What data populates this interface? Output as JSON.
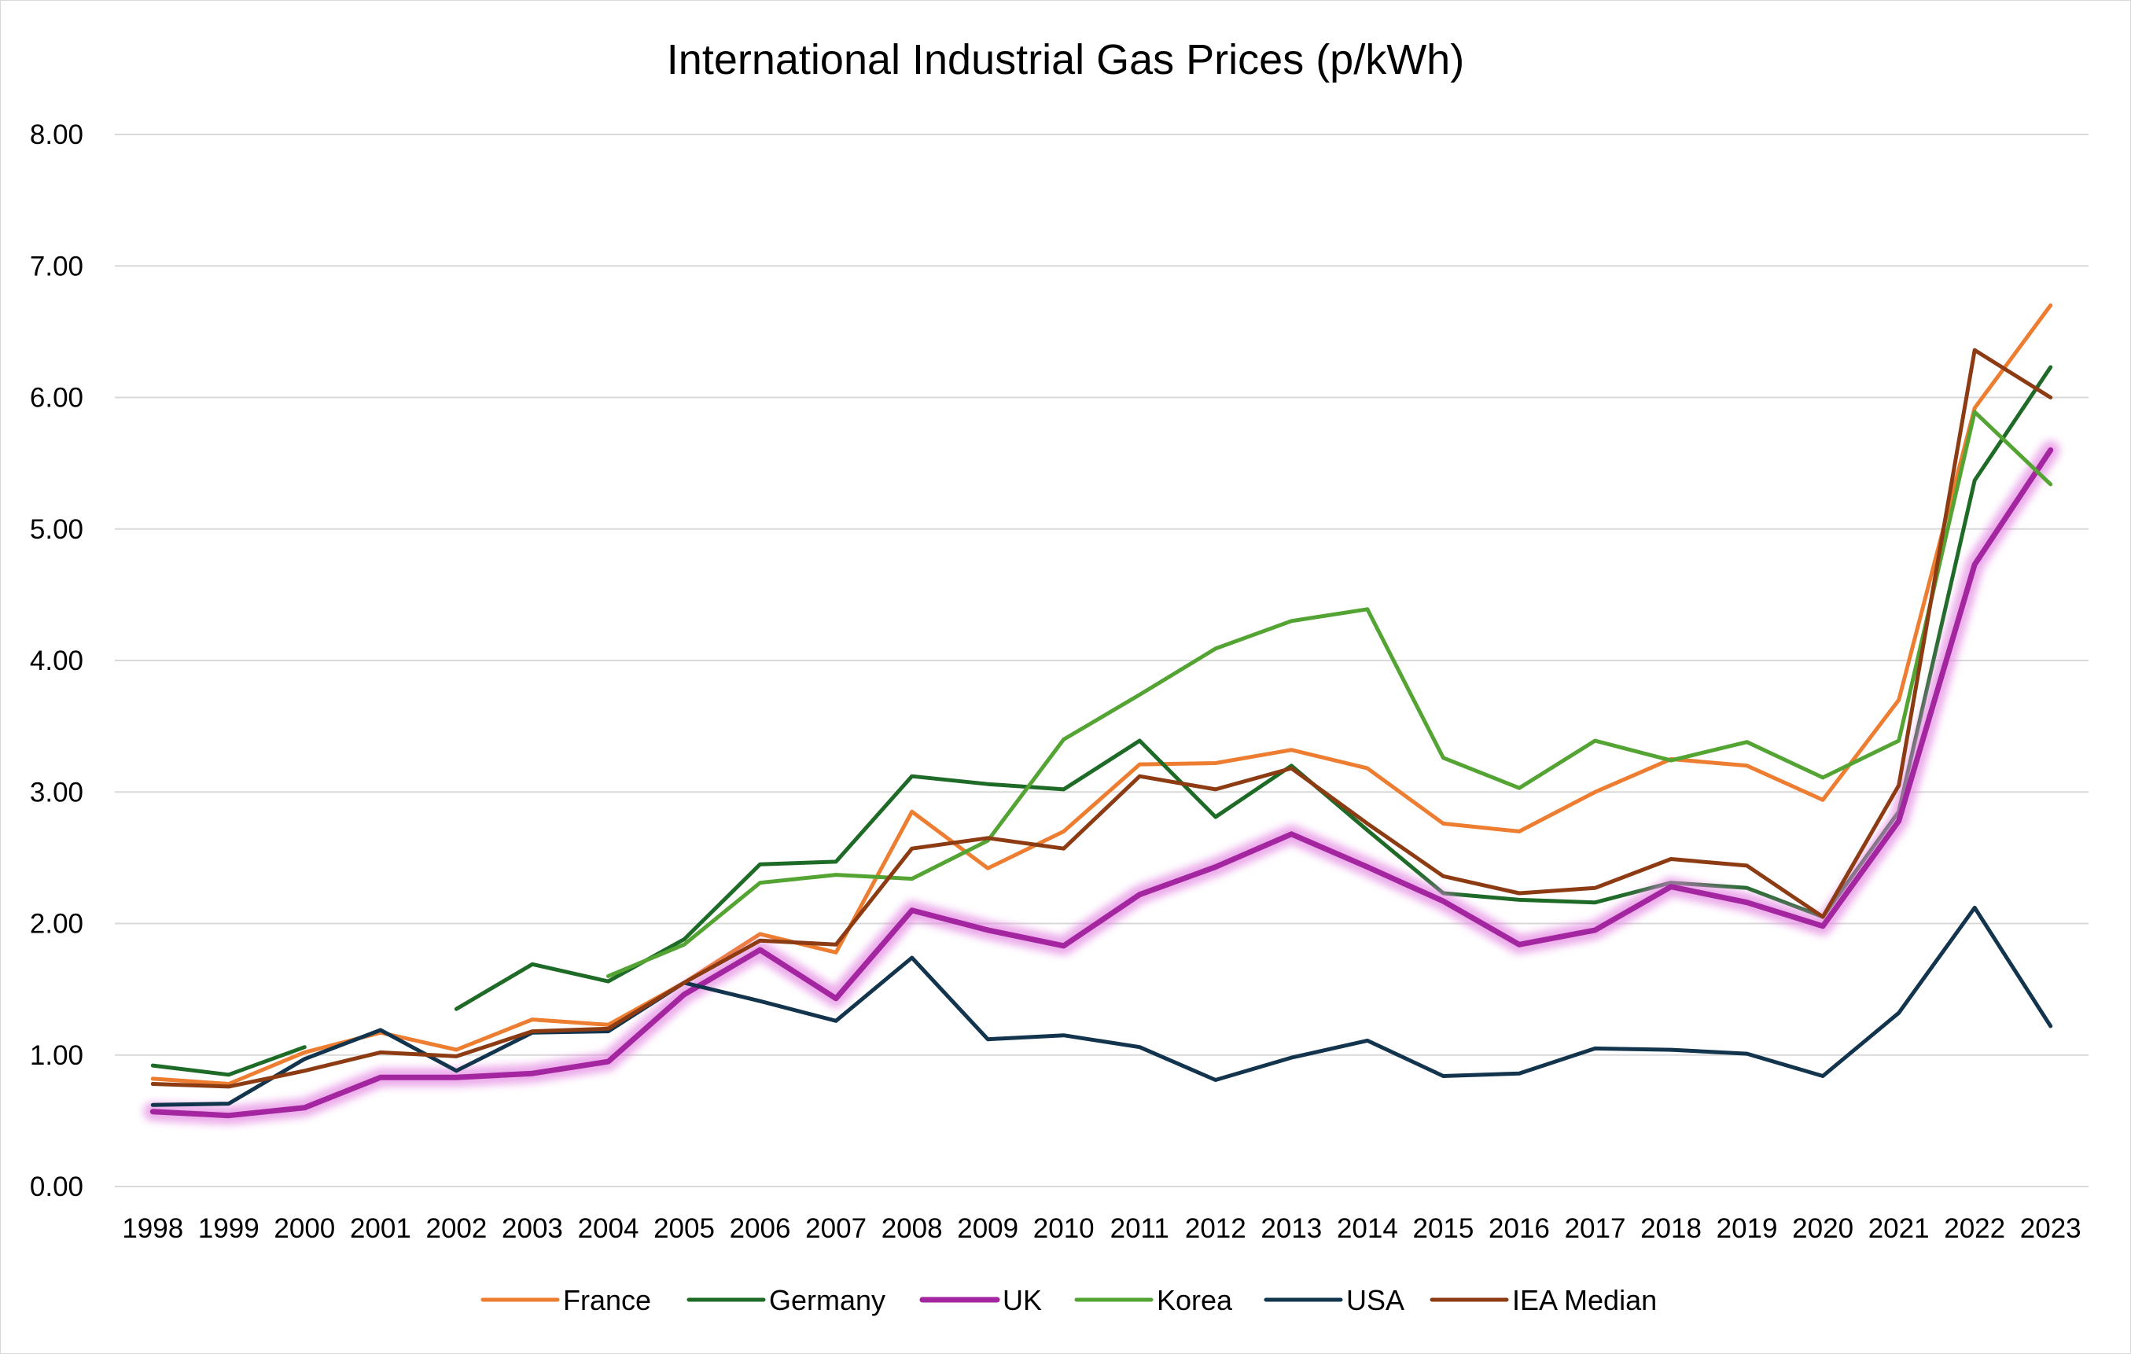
{
  "chart_data": {
    "type": "line",
    "title": "International Industrial Gas Prices (p/kWh)",
    "xlabel": "",
    "ylabel": "",
    "ylim": [
      0,
      8
    ],
    "ytick_labels": [
      "0.00",
      "1.00",
      "2.00",
      "3.00",
      "4.00",
      "5.00",
      "6.00",
      "7.00",
      "8.00"
    ],
    "grid": true,
    "legend_position": "bottom",
    "categories": [
      "1998",
      "1999",
      "2000",
      "2001",
      "2002",
      "2003",
      "2004",
      "2005",
      "2006",
      "2007",
      "2008",
      "2009",
      "2010",
      "2011",
      "2012",
      "2013",
      "2014",
      "2015",
      "2016",
      "2017",
      "2018",
      "2019",
      "2020",
      "2021",
      "2022",
      "2023"
    ],
    "series": [
      {
        "name": "France",
        "color": "#ED7D31",
        "values": [
          0.82,
          0.78,
          1.02,
          1.17,
          1.04,
          1.27,
          1.23,
          1.55,
          1.92,
          1.78,
          2.85,
          2.42,
          2.7,
          3.21,
          3.22,
          3.32,
          3.18,
          2.76,
          2.7,
          3.0,
          3.25,
          3.2,
          2.94,
          3.7,
          5.92,
          6.7
        ]
      },
      {
        "name": "Germany",
        "color": "#1E6B28",
        "values": [
          0.92,
          0.85,
          1.06,
          null,
          1.35,
          1.69,
          1.56,
          1.88,
          2.45,
          2.47,
          3.12,
          3.06,
          3.02,
          3.39,
          2.81,
          3.2,
          2.71,
          2.23,
          2.18,
          2.16,
          2.31,
          2.27,
          2.05,
          2.85,
          5.37,
          6.23
        ]
      },
      {
        "name": "UK",
        "color": "#A3259F",
        "highlight": true,
        "values": [
          0.57,
          0.54,
          0.6,
          0.83,
          0.83,
          0.86,
          0.95,
          1.46,
          1.8,
          1.43,
          2.1,
          1.95,
          1.83,
          2.22,
          2.43,
          2.68,
          2.43,
          2.17,
          1.84,
          1.95,
          2.28,
          2.16,
          1.98,
          2.78,
          4.73,
          5.6
        ]
      },
      {
        "name": "Korea",
        "color": "#53A433",
        "values": [
          null,
          null,
          null,
          null,
          null,
          null,
          1.6,
          1.84,
          2.31,
          2.37,
          2.34,
          2.63,
          3.4,
          3.74,
          4.09,
          4.3,
          4.39,
          3.26,
          3.03,
          3.39,
          3.24,
          3.38,
          3.11,
          3.39,
          5.89,
          5.34
        ]
      },
      {
        "name": "USA",
        "color": "#12344D",
        "values": [
          0.62,
          0.63,
          0.97,
          1.19,
          0.88,
          1.17,
          1.18,
          1.55,
          1.41,
          1.26,
          1.74,
          1.12,
          1.15,
          1.06,
          0.81,
          0.98,
          1.11,
          0.84,
          0.86,
          1.05,
          1.04,
          1.01,
          0.84,
          1.32,
          2.12,
          1.22
        ]
      },
      {
        "name": "IEA Median",
        "color": "#8C3B13",
        "values": [
          0.78,
          0.76,
          0.88,
          1.02,
          0.99,
          1.18,
          1.2,
          1.55,
          1.87,
          1.84,
          2.57,
          2.65,
          2.57,
          3.12,
          3.02,
          3.18,
          2.76,
          2.36,
          2.23,
          2.27,
          2.49,
          2.44,
          2.05,
          3.05,
          6.36,
          6.0
        ]
      }
    ]
  }
}
